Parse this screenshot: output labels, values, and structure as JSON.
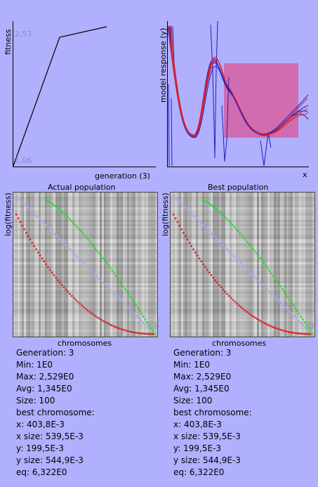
{
  "fitness_plot": {
    "ylabel": "fitness",
    "xlabel": "generation (3)",
    "ymax": "2,53",
    "ymin": "1,06"
  },
  "response_plot": {
    "ylabel": "model response (y)",
    "xlabel": "x",
    "region_color": "#d06cb0"
  },
  "actual": {
    "title": "Actual population",
    "ylabel": "log(fitness)",
    "xlabel": "chromosomes",
    "zero": "0"
  },
  "best": {
    "title": "Best population",
    "ylabel": "log(fitness)",
    "xlabel": "chromosomes",
    "zero": "0"
  },
  "stats_left": [
    "Generation: 3",
    "Min: 1E0",
    "Max: 2,529E0",
    "Avg: 1,345E0",
    "Size: 100",
    "best chromosome:",
    "x: 403,8E-3",
    "x size: 539,5E-3",
    "y: 199,5E-3",
    "y size: 544,9E-3",
    "eq: 6,322E0"
  ],
  "stats_right": [
    "Generation: 3",
    "Min: 1E0",
    "Max: 2,529E0",
    "Avg: 1,345E0",
    "Size: 100",
    "best chromosome:",
    "x: 403,8E-3",
    "x size: 539,5E-3",
    "y: 199,5E-3",
    "y size: 544,9E-3",
    "eq: 6,322E0"
  ],
  "colors": {
    "background": "#b0b0ff",
    "red_series": "#e02020",
    "green_series": "#22dd22",
    "blue_series": "#2020c0"
  }
}
